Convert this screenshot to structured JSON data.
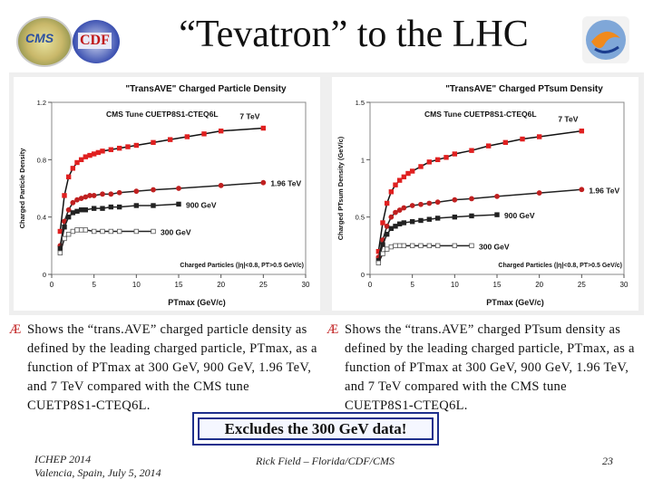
{
  "slide": {
    "title": "“Tevatron” to the LHC",
    "logos": {
      "cms": "CMS",
      "cdf": "CDF"
    }
  },
  "chart_data": [
    {
      "type": "scatter",
      "title": "\"TransAVE\" Charged Particle Density",
      "tune_label": "CMS Tune CUETP8S1-CTEQ6L",
      "xlabel": "PTmax (GeV/c)",
      "ylabel": "Charged Particle Density",
      "xlim": [
        0,
        30
      ],
      "ylim": [
        0,
        1.2
      ],
      "xticks": [
        "0",
        "5",
        "10",
        "15",
        "20",
        "25",
        "30"
      ],
      "yticks": [
        "0",
        "0.4",
        "0.8",
        "1.2"
      ],
      "annotation": "Charged Particles (|η|<0.8, PT>0.5 GeV/c)",
      "series": [
        {
          "name": "7 TeV",
          "x": [
            1,
            1.5,
            2,
            2.5,
            3,
            3.5,
            4,
            4.5,
            5,
            5.5,
            6,
            7,
            8,
            9,
            10,
            12,
            14,
            16,
            18,
            20,
            25
          ],
          "y": [
            0.3,
            0.55,
            0.68,
            0.74,
            0.78,
            0.8,
            0.82,
            0.83,
            0.84,
            0.85,
            0.86,
            0.87,
            0.88,
            0.89,
            0.9,
            0.92,
            0.94,
            0.96,
            0.98,
            1.0,
            1.02
          ]
        },
        {
          "name": "1.96 TeV",
          "x": [
            1,
            1.5,
            2,
            2.5,
            3,
            3.5,
            4,
            4.5,
            5,
            6,
            7,
            8,
            10,
            12,
            15,
            20,
            25
          ],
          "y": [
            0.2,
            0.37,
            0.45,
            0.5,
            0.52,
            0.53,
            0.54,
            0.55,
            0.55,
            0.56,
            0.56,
            0.57,
            0.58,
            0.59,
            0.6,
            0.62,
            0.64
          ]
        },
        {
          "name": "900 GeV",
          "x": [
            1,
            1.5,
            2,
            2.5,
            3,
            3.5,
            4,
            5,
            6,
            7,
            8,
            10,
            12,
            15
          ],
          "y": [
            0.18,
            0.33,
            0.4,
            0.43,
            0.44,
            0.45,
            0.45,
            0.46,
            0.46,
            0.47,
            0.47,
            0.48,
            0.48,
            0.49
          ]
        },
        {
          "name": "300 GeV",
          "x": [
            1,
            1.5,
            2,
            2.5,
            3,
            3.5,
            4,
            5,
            6,
            7,
            8,
            10,
            12
          ],
          "y": [
            0.15,
            0.25,
            0.28,
            0.3,
            0.31,
            0.31,
            0.31,
            0.3,
            0.3,
            0.3,
            0.3,
            0.3,
            0.3
          ]
        }
      ]
    },
    {
      "type": "scatter",
      "title": "\"TransAVE\" Charged PTsum Density",
      "tune_label": "CMS Tune CUETP8S1-CTEQ6L",
      "xlabel": "PTmax (GeV/c)",
      "ylabel": "Charged PTsum Density (GeV/c)",
      "xlim": [
        0,
        30
      ],
      "ylim": [
        0,
        1.5
      ],
      "xticks": [
        "0",
        "5",
        "10",
        "15",
        "20",
        "25",
        "30"
      ],
      "yticks": [
        "0",
        "0.5",
        "1",
        "1.5"
      ],
      "annotation": "Charged Particles (|η|<0.8, PT>0.5 GeV/c)",
      "series": [
        {
          "name": "7 TeV",
          "x": [
            1,
            1.5,
            2,
            2.5,
            3,
            3.5,
            4,
            4.5,
            5,
            6,
            7,
            8,
            9,
            10,
            12,
            14,
            16,
            18,
            20,
            25
          ],
          "y": [
            0.2,
            0.45,
            0.62,
            0.72,
            0.78,
            0.82,
            0.85,
            0.88,
            0.9,
            0.94,
            0.98,
            1.0,
            1.02,
            1.05,
            1.08,
            1.12,
            1.15,
            1.18,
            1.2,
            1.25
          ]
        },
        {
          "name": "1.96 TeV",
          "x": [
            1,
            1.5,
            2,
            2.5,
            3,
            3.5,
            4,
            5,
            6,
            7,
            8,
            10,
            12,
            15,
            20,
            25
          ],
          "y": [
            0.15,
            0.3,
            0.42,
            0.5,
            0.54,
            0.56,
            0.58,
            0.6,
            0.61,
            0.62,
            0.63,
            0.65,
            0.66,
            0.68,
            0.71,
            0.74
          ]
        },
        {
          "name": "900 GeV",
          "x": [
            1,
            1.5,
            2,
            2.5,
            3,
            3.5,
            4,
            5,
            6,
            7,
            8,
            10,
            12,
            15
          ],
          "y": [
            0.12,
            0.26,
            0.35,
            0.4,
            0.42,
            0.44,
            0.45,
            0.46,
            0.47,
            0.48,
            0.49,
            0.5,
            0.51,
            0.52
          ]
        },
        {
          "name": "300 GeV",
          "x": [
            1,
            1.5,
            2,
            2.5,
            3,
            3.5,
            4,
            5,
            6,
            7,
            8,
            10,
            12
          ],
          "y": [
            0.1,
            0.18,
            0.22,
            0.24,
            0.25,
            0.25,
            0.25,
            0.25,
            0.25,
            0.25,
            0.25,
            0.25,
            0.25
          ]
        }
      ]
    }
  ],
  "bullets": {
    "left": "Shows the “trans.AVE” charged particle density as defined by the leading charged particle, PTmax, as a function of PTmax at 300 GeV, 900 GeV, 1.96 TeV, and 7 TeV compared with the CMS tune CUETP8S1-CTEQ6L.",
    "right": "Shows the “trans.AVE” charged PTsum density as defined by the leading charged particle, PTmax, as a function of PTmax at 300 GeV, 900 GeV, 1.96 TeV, and 7 TeV compared with the CMS tune CUETP8S1-CTEQ6L.",
    "arrow": "Æ"
  },
  "highlight": "Excludes the 300 GeV data!",
  "footer": {
    "conf_line1": "ICHEP 2014",
    "conf_line2": "Valencia, Spain, July 5, 2014",
    "author": "Rick Field – Florida/CDF/CMS",
    "page": "23"
  },
  "colors": {
    "red": "#e02020",
    "dark": "#222222",
    "navy": "#1d2f8c"
  }
}
